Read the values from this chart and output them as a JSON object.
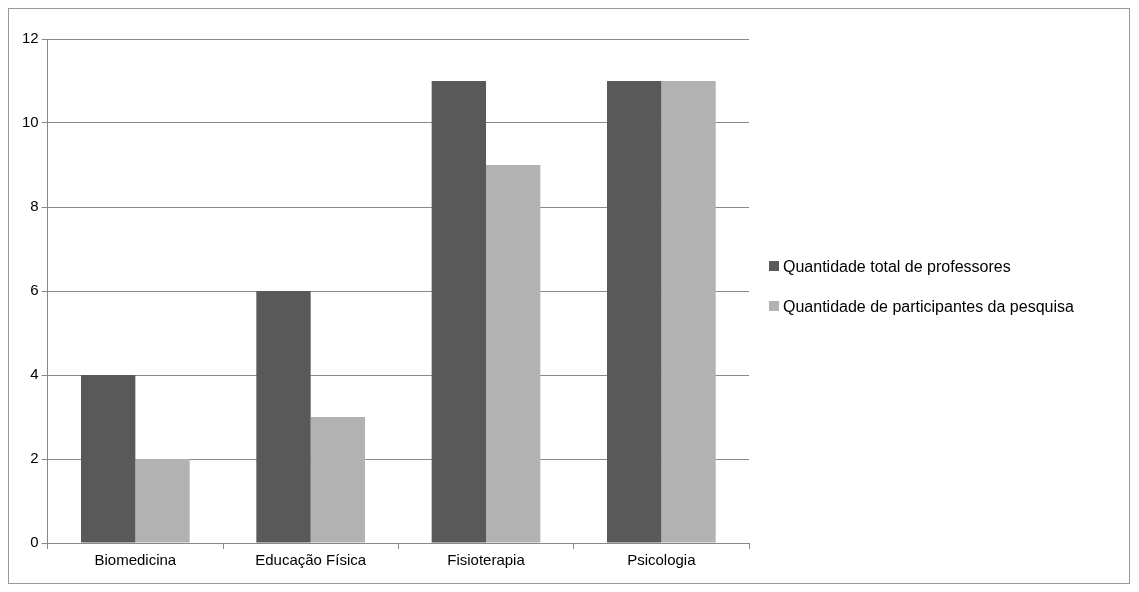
{
  "chart_data": {
    "type": "bar",
    "categories": [
      "Biomedicina",
      "Educação Física",
      "Fisioterapia",
      "Psicologia"
    ],
    "series": [
      {
        "name": "Quantidade total de professores",
        "color": "#595959",
        "values": [
          4,
          6,
          11,
          11
        ]
      },
      {
        "name": "Quantidade de participantes da pesquisa",
        "color": "#b2b2b2",
        "values": [
          2,
          3,
          9,
          11
        ]
      }
    ],
    "ylim": [
      0,
      12
    ],
    "yticks": [
      0,
      2,
      4,
      6,
      8,
      10,
      12
    ],
    "grid": "y",
    "legend": "right"
  }
}
